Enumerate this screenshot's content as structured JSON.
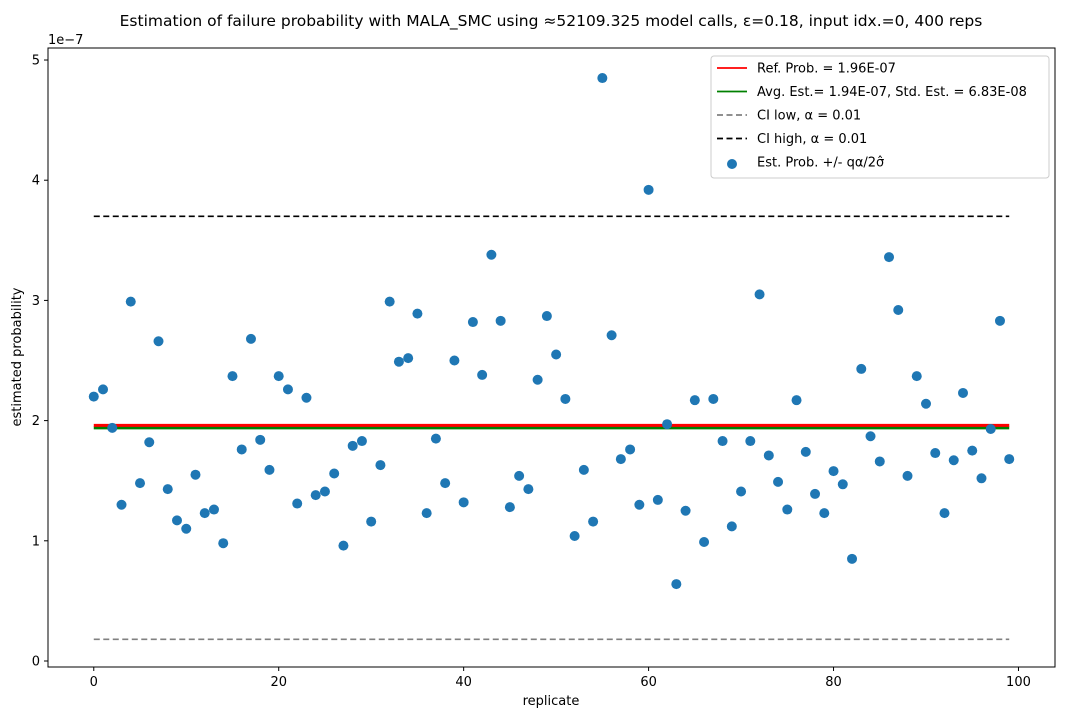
{
  "chart_data": {
    "type": "scatter",
    "title": "Estimation of failure probability with MALA_SMC using ≈52109.325 model calls, ε=0.18, input idx.=0, 400 reps",
    "xlabel": "replicate",
    "ylabel": "estimated probability",
    "y_offset_label": "1e−7",
    "xlim": [
      -4.95,
      103.95
    ],
    "ylim": [
      -0.05,
      5.1
    ],
    "x_ticks": [
      0,
      20,
      40,
      60,
      80,
      100
    ],
    "x_tick_labels": [
      "0",
      "20",
      "40",
      "60",
      "80",
      "100"
    ],
    "y_ticks": [
      0,
      1,
      2,
      3,
      4,
      5
    ],
    "y_tick_labels": [
      "0",
      "1",
      "2",
      "3",
      "4",
      "5"
    ],
    "grid": false,
    "legend_position": "top-right",
    "hlines": [
      {
        "name": "Ref. Prob. = 1.96E-07",
        "y": 1.96,
        "x_range": [
          0,
          99
        ],
        "color": "#ff0000",
        "style": "solid"
      },
      {
        "name": "Avg. Est.= 1.94E-07, Std. Est. = 6.83E-08",
        "y": 1.94,
        "x_range": [
          0,
          99
        ],
        "color": "#008000",
        "style": "solid"
      },
      {
        "name": "CI low, α = 0.01",
        "y": 0.18,
        "x_range": [
          0,
          99
        ],
        "color": "#808080",
        "style": "dashed"
      },
      {
        "name": "CI high, α = 0.01",
        "y": 3.7,
        "x_range": [
          0,
          99
        ],
        "color": "#000000",
        "style": "dashed"
      }
    ],
    "legend": [
      {
        "label": "Ref. Prob. = 1.96E-07",
        "kind": "line",
        "color": "#ff0000",
        "style": "solid"
      },
      {
        "label": "Avg. Est.= 1.94E-07, Std. Est. = 6.83E-08",
        "kind": "line",
        "color": "#008000",
        "style": "solid"
      },
      {
        "label": "CI low, α = 0.01",
        "kind": "line",
        "color": "#808080",
        "style": "dashed"
      },
      {
        "label": "CI high, α = 0.01",
        "kind": "line",
        "color": "#000000",
        "style": "dashed"
      },
      {
        "label": "Est. Prob. +/- qα/2σ̂",
        "kind": "marker",
        "color": "#1f77b4",
        "style": "circle"
      }
    ],
    "series": [
      {
        "name": "Est. Prob. +/- qα/2σ̂",
        "color": "#1f77b4",
        "x": [
          0,
          1,
          2,
          3,
          4,
          5,
          6,
          7,
          8,
          9,
          10,
          11,
          12,
          13,
          14,
          15,
          16,
          17,
          18,
          19,
          20,
          21,
          22,
          23,
          24,
          25,
          26,
          27,
          28,
          29,
          30,
          31,
          32,
          33,
          34,
          35,
          36,
          37,
          38,
          39,
          40,
          41,
          42,
          43,
          44,
          45,
          46,
          47,
          48,
          49,
          50,
          51,
          52,
          53,
          54,
          55,
          56,
          57,
          58,
          59,
          60,
          61,
          62,
          63,
          64,
          65,
          66,
          67,
          68,
          69,
          70,
          71,
          72,
          73,
          74,
          75,
          76,
          77,
          78,
          79,
          80,
          81,
          82,
          83,
          84,
          85,
          86,
          87,
          88,
          89,
          90,
          91,
          92,
          93,
          94,
          95,
          96,
          97,
          98,
          99
        ],
        "y": [
          2.2,
          2.26,
          1.94,
          1.3,
          2.99,
          1.48,
          1.82,
          2.66,
          1.43,
          1.17,
          1.1,
          1.55,
          1.23,
          1.26,
          0.98,
          2.37,
          1.76,
          2.68,
          1.84,
          1.59,
          2.37,
          2.26,
          1.31,
          2.19,
          1.38,
          1.41,
          1.56,
          0.96,
          1.79,
          1.83,
          1.16,
          1.63,
          2.99,
          2.49,
          2.52,
          2.89,
          1.23,
          1.85,
          1.48,
          2.5,
          1.32,
          2.82,
          2.38,
          3.38,
          2.83,
          1.28,
          1.54,
          1.43,
          2.34,
          2.87,
          2.55,
          2.18,
          1.04,
          1.59,
          1.16,
          4.85,
          2.71,
          1.68,
          1.76,
          1.3,
          3.92,
          1.34,
          1.97,
          0.64,
          1.25,
          2.17,
          0.99,
          2.18,
          1.83,
          1.12,
          1.41,
          1.83,
          3.05,
          1.71,
          1.49,
          1.26,
          2.17,
          1.74,
          1.39,
          1.23,
          1.58,
          1.47,
          0.85,
          2.43,
          1.87,
          1.66,
          3.36,
          2.92,
          1.54,
          2.37,
          2.14,
          1.73,
          1.23,
          1.67,
          2.23,
          1.75,
          1.52,
          1.93,
          2.83,
          1.68
        ]
      }
    ]
  }
}
